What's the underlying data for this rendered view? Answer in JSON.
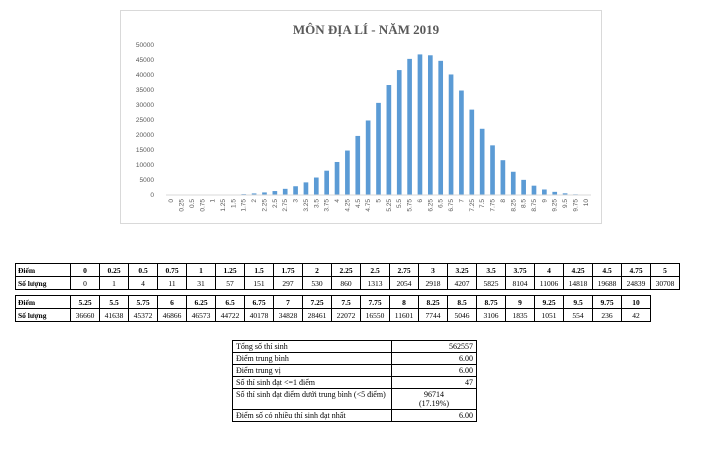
{
  "chart_data": {
    "type": "bar",
    "title": "MÔN ĐỊA LÍ - NĂM 2019",
    "xlabel": "",
    "ylabel": "",
    "ylim": [
      0,
      50000
    ],
    "yticks": [
      0,
      5000,
      10000,
      15000,
      20000,
      25000,
      30000,
      35000,
      40000,
      45000,
      50000
    ],
    "bar_color": "#5b9bd5",
    "categories": [
      "0",
      "0.25",
      "0.5",
      "0.75",
      "1",
      "1.25",
      "1.5",
      "1.75",
      "2",
      "2.25",
      "2.5",
      "2.75",
      "3",
      "3.25",
      "3.5",
      "3.75",
      "4",
      "4.25",
      "4.5",
      "4.75",
      "5",
      "5.25",
      "5.5",
      "5.75",
      "6",
      "6.25",
      "6.5",
      "6.75",
      "7",
      "7.25",
      "7.5",
      "7.75",
      "8",
      "8.25",
      "8.5",
      "8.75",
      "9",
      "9.25",
      "9.5",
      "9.75",
      "10"
    ],
    "values": [
      0,
      1,
      4,
      11,
      31,
      57,
      151,
      297,
      530,
      860,
      1313,
      2054,
      2918,
      4207,
      5825,
      8104,
      11006,
      14818,
      19688,
      24839,
      30708,
      36660,
      41638,
      45372,
      46866,
      46573,
      44722,
      40178,
      34828,
      28461,
      22072,
      16550,
      11601,
      7744,
      5046,
      3106,
      1835,
      1051,
      554,
      236,
      42
    ]
  },
  "table": {
    "row_label_score": "Điểm",
    "row_label_count": "Số lượng",
    "row1": {
      "scores": [
        "0",
        "0.25",
        "0.5",
        "0.75",
        "1",
        "1.25",
        "1.5",
        "1.75",
        "2",
        "2.25",
        "2.5",
        "2.75",
        "3",
        "3.25",
        "3.5",
        "3.75",
        "4",
        "4.25",
        "4.5",
        "4.75",
        "5"
      ],
      "counts": [
        "0",
        "1",
        "4",
        "11",
        "31",
        "57",
        "151",
        "297",
        "530",
        "860",
        "1313",
        "2054",
        "2918",
        "4207",
        "5825",
        "8104",
        "11006",
        "14818",
        "19688",
        "24839",
        "30708"
      ]
    },
    "row2": {
      "scores": [
        "5.25",
        "5.5",
        "5.75",
        "6",
        "6.25",
        "6.5",
        "6.75",
        "7",
        "7.25",
        "7.5",
        "7.75",
        "8",
        "8.25",
        "8.5",
        "8.75",
        "9",
        "9.25",
        "9.5",
        "9.75",
        "10"
      ],
      "counts": [
        "36660",
        "41638",
        "45372",
        "46866",
        "46573",
        "44722",
        "40178",
        "34828",
        "28461",
        "22072",
        "16550",
        "11601",
        "7744",
        "5046",
        "3106",
        "1835",
        "1051",
        "554",
        "236",
        "42"
      ]
    }
  },
  "stats": [
    {
      "label": "Tổng số thí sinh",
      "value": "562557"
    },
    {
      "label": "Điểm trung bình",
      "value": "6.00"
    },
    {
      "label": "Điểm trung vị",
      "value": "6.00"
    },
    {
      "label": "Số thí sinh đạt <=1 điểm",
      "value": "47"
    },
    {
      "label": "Số thí sinh đạt điểm dưới trung bình (<5 điểm)",
      "value": "96714",
      "value2": "(17.19%)"
    },
    {
      "label": "Điểm số có nhiều thí sinh đạt nhất",
      "value": "6.00"
    }
  ]
}
